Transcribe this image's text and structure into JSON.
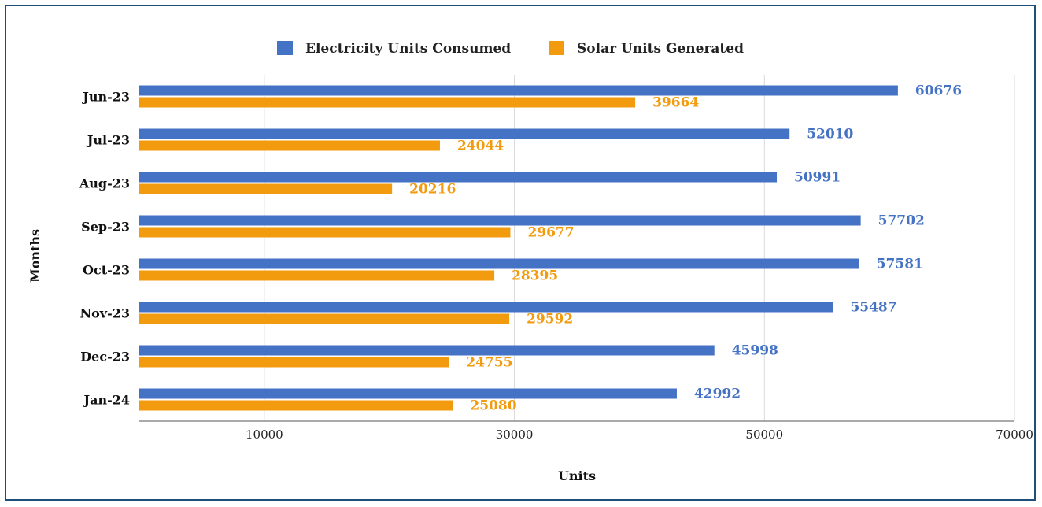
{
  "chart_data": {
    "type": "bar",
    "orientation": "horizontal",
    "categories": [
      "Jun-23",
      "Jul-23",
      "Aug-23",
      "Sep-23",
      "Oct-23",
      "Nov-23",
      "Dec-23",
      "Jan-24"
    ],
    "series": [
      {
        "name": "Electricity Units Consumed",
        "color": "#4472c4",
        "values": [
          60676,
          52010,
          50991,
          57702,
          57581,
          55487,
          45998,
          42992
        ]
      },
      {
        "name": "Solar Units Generated",
        "color": "#f29b0e",
        "values": [
          39664,
          24044,
          20216,
          29677,
          28395,
          29592,
          24755,
          25080
        ]
      }
    ],
    "xlabel": "Units",
    "ylabel": "Months",
    "xlim": [
      0,
      70000
    ],
    "xticks": [
      10000,
      30000,
      50000,
      70000
    ],
    "grid": true,
    "legend_position": "top"
  }
}
